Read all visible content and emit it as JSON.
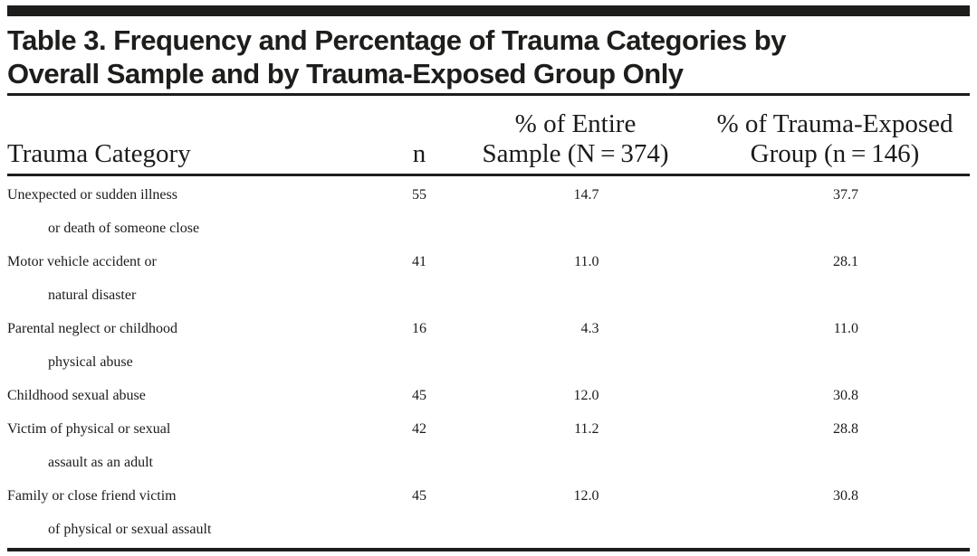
{
  "title": {
    "line1": "Table 3. Frequency and Percentage of Trauma Categories by",
    "line2": "Overall Sample and by Trauma-Exposed Group Only"
  },
  "table": {
    "columns": {
      "category": "Trauma Category",
      "n": "n",
      "pct_sample_line1": "% of Entire",
      "pct_sample_line2": "Sample (N = 374)",
      "pct_exposed_line1": "% of Trauma-Exposed",
      "pct_exposed_line2": "Group (n = 146)"
    },
    "rows": [
      {
        "category_line1": "Unexpected or sudden illness",
        "category_line2": "or death of someone close",
        "n": "55",
        "pct_sample": "14.7",
        "pct_exposed": "37.7"
      },
      {
        "category_line1": "Motor vehicle accident or",
        "category_line2": "natural disaster",
        "n": "41",
        "pct_sample": "11.0",
        "pct_exposed": "28.1"
      },
      {
        "category_line1": "Parental neglect or childhood",
        "category_line2": "physical abuse",
        "n": "16",
        "pct_sample": "4.3",
        "pct_exposed": "11.0"
      },
      {
        "category_line1": "Childhood sexual abuse",
        "category_line2": "",
        "n": "45",
        "pct_sample": "12.0",
        "pct_exposed": "30.8"
      },
      {
        "category_line1": "Victim of physical or sexual",
        "category_line2": "assault as an adult",
        "n": "42",
        "pct_sample": "11.2",
        "pct_exposed": "28.8"
      },
      {
        "category_line1": "Family or close friend victim",
        "category_line2": "of physical or sexual assault",
        "n": "45",
        "pct_sample": "12.0",
        "pct_exposed": "30.8"
      }
    ]
  },
  "colors": {
    "ink": "#1d1d1b",
    "background": "#ffffff"
  }
}
